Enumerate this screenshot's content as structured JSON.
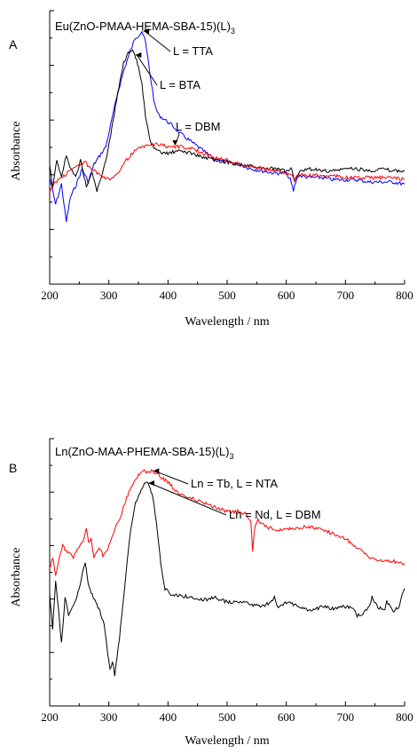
{
  "panels": [
    {
      "label": "A",
      "title_main": "Eu(ZnO-PMAA-HEMA-SBA-15)(L)",
      "title_sub": "3",
      "xlabel": "Wavelength / nm",
      "ylabel": "Absorbance",
      "xticks": [
        "200",
        "300",
        "400",
        "500",
        "600",
        "700",
        "800"
      ],
      "annotations": [
        {
          "text": "L = TTA",
          "series": 0,
          "x": 356
        },
        {
          "text": "L = BTA",
          "series": 1,
          "x": 343
        },
        {
          "text": "L = DBM",
          "series": 2,
          "x": 412
        }
      ]
    },
    {
      "label": "B",
      "title_main": "Ln(ZnO-MAA-PHEMA-SBA-15)(L)",
      "title_sub": "3",
      "xlabel": "Wavelength / nm",
      "ylabel": "Absorbance",
      "xticks": [
        "200",
        "300",
        "400",
        "500",
        "600",
        "700",
        "800"
      ],
      "annotations": [
        {
          "text": "Ln = Tb, L = NTA",
          "series": 0,
          "x": 373
        },
        {
          "text": "Ln = Nd, L = DBM",
          "series": 1,
          "x": 365
        }
      ]
    }
  ],
  "chart_data": [
    {
      "type": "line",
      "title": "Eu(ZnO-PMAA-HEMA-SBA-15)(L)3",
      "xlabel": "Wavelength / nm",
      "ylabel": "Absorbance",
      "xlim": [
        200,
        800
      ],
      "ylim": [
        0,
        1
      ],
      "grid": false,
      "series": [
        {
          "name": "L = TTA",
          "color": "#0000ff",
          "x": [
            200,
            210,
            220,
            228,
            235,
            245,
            255,
            265,
            275,
            285,
            295,
            305,
            315,
            325,
            335,
            345,
            350,
            356,
            362,
            370,
            378,
            385,
            395,
            405,
            420,
            440,
            460,
            480,
            500,
            520,
            540,
            560,
            580,
            600,
            607,
            612,
            616,
            620,
            640,
            660,
            680,
            700,
            720,
            740,
            760,
            780,
            800
          ],
          "y": [
            0.36,
            0.24,
            0.33,
            0.16,
            0.27,
            0.33,
            0.4,
            0.34,
            0.42,
            0.46,
            0.5,
            0.62,
            0.74,
            0.84,
            0.92,
            0.99,
            1.0,
            1.02,
            0.97,
            0.82,
            0.68,
            0.64,
            0.62,
            0.6,
            0.56,
            0.52,
            0.48,
            0.44,
            0.43,
            0.42,
            0.4,
            0.39,
            0.38,
            0.38,
            0.35,
            0.3,
            0.34,
            0.37,
            0.36,
            0.36,
            0.35,
            0.35,
            0.35,
            0.34,
            0.34,
            0.34,
            0.33
          ]
        },
        {
          "name": "L = BTA",
          "color": "#000000",
          "x": [
            200,
            205,
            212,
            220,
            228,
            236,
            244,
            252,
            262,
            272,
            280,
            285,
            295,
            305,
            315,
            325,
            333,
            340,
            345,
            350,
            356,
            362,
            370,
            380,
            390,
            400,
            420,
            440,
            460,
            480,
            500,
            520,
            540,
            560,
            580,
            600,
            610,
            614,
            620,
            640,
            660,
            680,
            700,
            720,
            740,
            760,
            780,
            800
          ],
          "y": [
            0.42,
            0.32,
            0.44,
            0.36,
            0.46,
            0.4,
            0.36,
            0.44,
            0.32,
            0.38,
            0.3,
            0.34,
            0.44,
            0.58,
            0.74,
            0.88,
            0.92,
            0.93,
            0.9,
            0.86,
            0.78,
            0.64,
            0.52,
            0.48,
            0.47,
            0.47,
            0.48,
            0.47,
            0.45,
            0.44,
            0.43,
            0.42,
            0.41,
            0.4,
            0.4,
            0.39,
            0.4,
            0.34,
            0.38,
            0.4,
            0.39,
            0.39,
            0.4,
            0.4,
            0.39,
            0.4,
            0.39,
            0.39
          ]
        },
        {
          "name": "L = DBM",
          "color": "#ff0000",
          "x": [
            200,
            210,
            220,
            230,
            240,
            250,
            260,
            270,
            280,
            290,
            300,
            310,
            320,
            330,
            340,
            350,
            360,
            370,
            380,
            400,
            420,
            440,
            460,
            480,
            500,
            520,
            540,
            560,
            580,
            600,
            610,
            614,
            620,
            640,
            660,
            680,
            700,
            720,
            740,
            760,
            780,
            800
          ],
          "y": [
            0.3,
            0.34,
            0.36,
            0.38,
            0.4,
            0.42,
            0.43,
            0.4,
            0.38,
            0.36,
            0.35,
            0.37,
            0.4,
            0.44,
            0.47,
            0.49,
            0.5,
            0.51,
            0.51,
            0.5,
            0.5,
            0.49,
            0.47,
            0.45,
            0.44,
            0.42,
            0.41,
            0.4,
            0.39,
            0.38,
            0.38,
            0.35,
            0.37,
            0.37,
            0.37,
            0.37,
            0.36,
            0.36,
            0.36,
            0.36,
            0.36,
            0.35
          ]
        }
      ]
    },
    {
      "type": "line",
      "title": "Ln(ZnO-MAA-PHEMA-SBA-15)(L)3",
      "xlabel": "Wavelength / nm",
      "ylabel": "Absorbance",
      "xlim": [
        200,
        800
      ],
      "ylim": [
        0,
        1
      ],
      "grid": false,
      "series": [
        {
          "name": "Ln = Tb, L = NTA",
          "color": "#ff0000",
          "x": [
            200,
            205,
            210,
            215,
            222,
            230,
            240,
            250,
            258,
            262,
            266,
            270,
            275,
            280,
            285,
            290,
            296,
            302,
            310,
            320,
            330,
            340,
            350,
            358,
            365,
            372,
            380,
            390,
            400,
            410,
            420,
            440,
            460,
            480,
            500,
            520,
            530,
            540,
            543,
            546,
            552,
            560,
            580,
            600,
            620,
            640,
            660,
            680,
            700,
            720,
            740,
            760,
            780,
            800
          ],
          "y": [
            0.55,
            0.6,
            0.52,
            0.58,
            0.65,
            0.62,
            0.6,
            0.64,
            0.68,
            0.72,
            0.66,
            0.68,
            0.6,
            0.62,
            0.64,
            0.6,
            0.62,
            0.66,
            0.72,
            0.78,
            0.86,
            0.92,
            0.96,
            0.98,
            0.97,
            0.98,
            0.97,
            0.95,
            0.93,
            0.9,
            0.88,
            0.86,
            0.84,
            0.82,
            0.8,
            0.8,
            0.79,
            0.76,
            0.62,
            0.72,
            0.76,
            0.74,
            0.72,
            0.72,
            0.73,
            0.73,
            0.72,
            0.7,
            0.68,
            0.64,
            0.6,
            0.58,
            0.58,
            0.57
          ]
        },
        {
          "name": "Ln = Nd, L = DBM",
          "color": "#000000",
          "x": [
            200,
            205,
            210,
            215,
            220,
            226,
            232,
            240,
            248,
            255,
            260,
            265,
            270,
            278,
            285,
            292,
            298,
            302,
            306,
            310,
            318,
            325,
            335,
            345,
            355,
            362,
            368,
            375,
            382,
            388,
            395,
            405,
            420,
            440,
            460,
            480,
            500,
            520,
            540,
            560,
            575,
            580,
            585,
            600,
            620,
            640,
            660,
            680,
            700,
            715,
            720,
            730,
            740,
            745,
            755,
            765,
            770,
            780,
            790,
            800
          ],
          "y": [
            0.44,
            0.28,
            0.5,
            0.36,
            0.22,
            0.42,
            0.34,
            0.38,
            0.44,
            0.52,
            0.58,
            0.48,
            0.44,
            0.4,
            0.36,
            0.3,
            0.18,
            0.1,
            0.14,
            0.08,
            0.24,
            0.42,
            0.68,
            0.84,
            0.9,
            0.93,
            0.92,
            0.86,
            0.72,
            0.56,
            0.46,
            0.43,
            0.43,
            0.42,
            0.41,
            0.42,
            0.4,
            0.4,
            0.39,
            0.38,
            0.4,
            0.43,
            0.38,
            0.4,
            0.38,
            0.36,
            0.38,
            0.37,
            0.38,
            0.37,
            0.34,
            0.35,
            0.38,
            0.42,
            0.38,
            0.36,
            0.4,
            0.36,
            0.38,
            0.46
          ]
        }
      ]
    }
  ]
}
